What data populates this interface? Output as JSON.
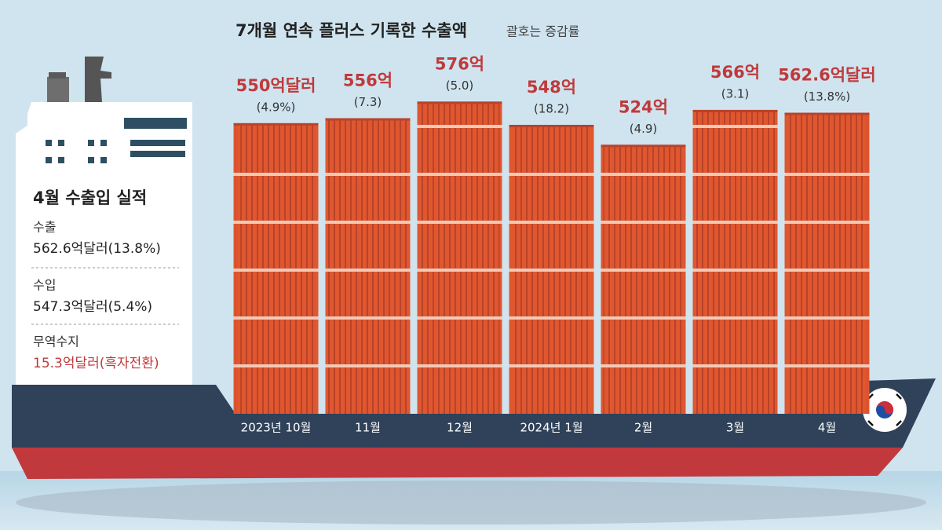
{
  "chart_data": {
    "type": "bar",
    "title": "7개월 연속 플러스 기록한 수출액",
    "subtitle": "괄호는 증감률",
    "categories": [
      "2023년 10월",
      "11월",
      "12월",
      "2024년 1월",
      "2월",
      "3월",
      "4월"
    ],
    "values": [
      550,
      556,
      576,
      548,
      524,
      566,
      562.6
    ],
    "value_labels": [
      "550억달러",
      "556억",
      "576억",
      "548억",
      "524억",
      "566억",
      "562.6억달러"
    ],
    "growth_labels": [
      "(4.9%)",
      "(7.3)",
      "(5.0)",
      "(18.2)",
      "(4.9)",
      "(3.1)",
      "(13.8%)"
    ],
    "color": "#e0572f",
    "ylim": [
      200,
      600
    ]
  },
  "summary": {
    "title": "4월 수출입 실적",
    "items": [
      {
        "label": "수출",
        "value": "562.6억달러(13.8%)"
      },
      {
        "label": "수입",
        "value": "547.3억달러(5.4%)"
      },
      {
        "label": "무역수지",
        "value": "15.3억달러(흑자전환)"
      }
    ]
  }
}
